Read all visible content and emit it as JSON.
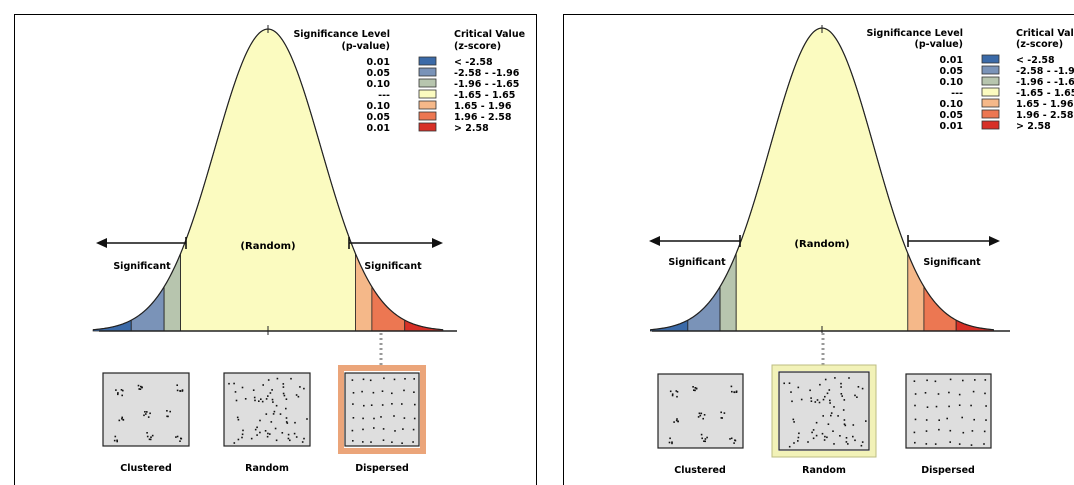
{
  "legend": {
    "significance_header": [
      "Significance Level",
      "(p-value)"
    ],
    "critical_header": [
      "Critical Value",
      "(z-score)"
    ],
    "rows": [
      {
        "p": "0.01",
        "z": "< -2.58",
        "color": "#3b6aa8"
      },
      {
        "p": "0.05",
        "z": "-2.58 - -1.96",
        "color": "#7a93b8"
      },
      {
        "p": "0.10",
        "z": "-1.96 - -1.65",
        "color": "#b7c5ae"
      },
      {
        "p": "---",
        "z": "-1.65 - 1.65",
        "color": "#fbfbc0"
      },
      {
        "p": "0.10",
        "z": "1.65 - 1.96",
        "color": "#f5b889"
      },
      {
        "p": "0.05",
        "z": "1.96 - 2.58",
        "color": "#ec7752"
      },
      {
        "p": "0.01",
        "z": "> 2.58",
        "color": "#d73027"
      }
    ]
  },
  "labels": {
    "random_center": "(Random)",
    "significant_left": "Significant",
    "significant_right": "Significant",
    "pattern_clustered": "Clustered",
    "pattern_random": "Random",
    "pattern_dispersed": "Dispersed"
  },
  "highlights": {
    "left_panel": "Dispersed",
    "right_panel": "Random",
    "dispersed_color": "#eba57a",
    "random_color": "#f2f2b8"
  }
}
